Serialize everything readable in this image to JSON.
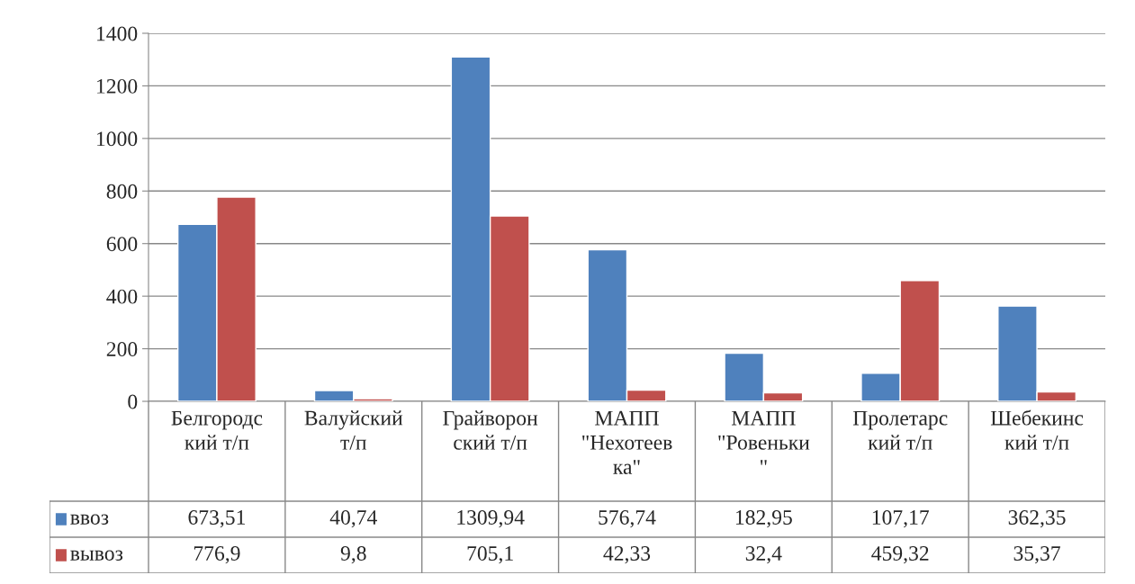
{
  "chart_data": {
    "type": "bar",
    "categories": [
      "Белгородс\nкий т/п",
      "Валуйский\nт/п",
      "Грайворон\nский т/п",
      "МАПП\n\"Нехотеев\nка\"",
      "МАПП\n\"Ровеньки\n\"",
      "Пролетарс\nкий т/п",
      "Шебекинс\nкий т/п"
    ],
    "series": [
      {
        "name": "ввоз",
        "color": "#4f81bd",
        "values": [
          673.51,
          40.74,
          1309.94,
          576.74,
          182.95,
          107.17,
          362.35
        ],
        "value_labels": [
          "673,51",
          "40,74",
          "1309,94",
          "576,74",
          "182,95",
          "107,17",
          "362,35"
        ]
      },
      {
        "name": "вывоз",
        "color": "#c0504d",
        "values": [
          776.9,
          9.8,
          705.1,
          42.33,
          32.4,
          459.32,
          35.37
        ],
        "value_labels": [
          "776,9",
          "9,8",
          "705,1",
          "42,33",
          "32,4",
          "459,32",
          "35,37"
        ]
      }
    ],
    "ylim": [
      0,
      1400
    ],
    "yticks": [
      0,
      200,
      400,
      600,
      800,
      1000,
      1200,
      1400
    ],
    "grid": "y",
    "legend": "bottom left"
  }
}
